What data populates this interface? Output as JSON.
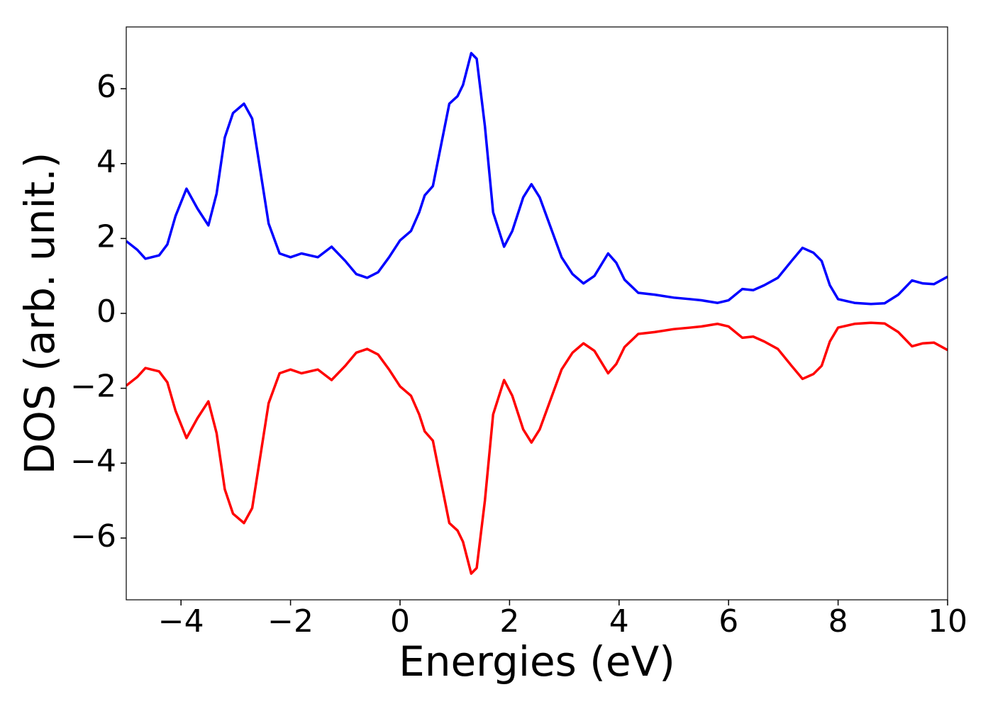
{
  "chart_data": {
    "type": "line",
    "xlabel": "Energies (eV)",
    "ylabel": "DOS (arb. unit.)",
    "x": [
      -5,
      -4.8,
      -4.65,
      -4.4,
      -4.25,
      -4.1,
      -3.9,
      -3.7,
      -3.5,
      -3.35,
      -3.2,
      -3.05,
      -2.85,
      -2.7,
      -2.55,
      -2.4,
      -2.2,
      -2.0,
      -1.8,
      -1.5,
      -1.25,
      -1.0,
      -0.8,
      -0.6,
      -0.4,
      -0.2,
      0.0,
      0.2,
      0.35,
      0.45,
      0.6,
      0.75,
      0.9,
      1.05,
      1.15,
      1.3,
      1.4,
      1.55,
      1.7,
      1.9,
      2.05,
      2.25,
      2.4,
      2.55,
      2.75,
      2.95,
      3.15,
      3.35,
      3.55,
      3.8,
      3.95,
      4.1,
      4.35,
      4.65,
      5.0,
      5.3,
      5.5,
      5.8,
      6.0,
      6.25,
      6.45,
      6.65,
      6.9,
      7.15,
      7.35,
      7.55,
      7.7,
      7.85,
      8.0,
      8.3,
      8.6,
      8.85,
      9.1,
      9.35,
      9.55,
      9.75,
      10
    ],
    "series": [
      {
        "color": "#0000ff",
        "values": [
          1.93,
          1.7,
          1.46,
          1.55,
          1.84,
          2.6,
          3.33,
          2.8,
          2.35,
          3.2,
          4.7,
          5.35,
          5.6,
          5.2,
          3.8,
          2.4,
          1.6,
          1.5,
          1.6,
          1.5,
          1.78,
          1.4,
          1.05,
          0.95,
          1.1,
          1.5,
          1.95,
          2.2,
          2.7,
          3.15,
          3.4,
          4.5,
          5.6,
          5.8,
          6.1,
          6.95,
          6.8,
          5.0,
          2.7,
          1.78,
          2.2,
          3.1,
          3.45,
          3.1,
          2.3,
          1.5,
          1.05,
          0.8,
          1.0,
          1.6,
          1.35,
          0.9,
          0.55,
          0.5,
          0.42,
          0.38,
          0.35,
          0.28,
          0.35,
          0.65,
          0.62,
          0.75,
          0.95,
          1.4,
          1.75,
          1.62,
          1.4,
          0.75,
          0.38,
          0.28,
          0.25,
          0.27,
          0.5,
          0.88,
          0.8,
          0.78,
          0.98
        ]
      },
      {
        "color": "#ff0000",
        "values": [
          -1.93,
          -1.7,
          -1.46,
          -1.55,
          -1.84,
          -2.6,
          -3.33,
          -2.8,
          -2.35,
          -3.2,
          -4.7,
          -5.35,
          -5.6,
          -5.2,
          -3.8,
          -2.4,
          -1.6,
          -1.5,
          -1.6,
          -1.5,
          -1.78,
          -1.4,
          -1.05,
          -0.95,
          -1.1,
          -1.5,
          -1.95,
          -2.2,
          -2.7,
          -3.15,
          -3.4,
          -4.5,
          -5.6,
          -5.8,
          -6.1,
          -6.95,
          -6.8,
          -5.0,
          -2.7,
          -1.78,
          -2.2,
          -3.1,
          -3.45,
          -3.1,
          -2.3,
          -1.5,
          -1.05,
          -0.8,
          -1.0,
          -1.6,
          -1.35,
          -0.9,
          -0.55,
          -0.5,
          -0.42,
          -0.38,
          -0.35,
          -0.28,
          -0.35,
          -0.65,
          -0.62,
          -0.75,
          -0.95,
          -1.4,
          -1.75,
          -1.62,
          -1.4,
          -0.75,
          -0.38,
          -0.28,
          -0.25,
          -0.27,
          -0.5,
          -0.88,
          -0.8,
          -0.78,
          -0.98
        ]
      }
    ],
    "xlim": [
      -5,
      10
    ],
    "xticks": [
      {
        "value": -4,
        "label": "−4"
      },
      {
        "value": -2,
        "label": "−2"
      },
      0,
      2,
      4,
      6,
      8,
      10
    ],
    "ylim": [
      -7.65,
      7.65
    ],
    "yticks": [
      {
        "value": -6,
        "label": "−6"
      },
      {
        "value": -4,
        "label": "−4"
      },
      {
        "value": -2,
        "label": "−2"
      },
      0,
      2,
      4,
      6
    ],
    "grid": false
  }
}
